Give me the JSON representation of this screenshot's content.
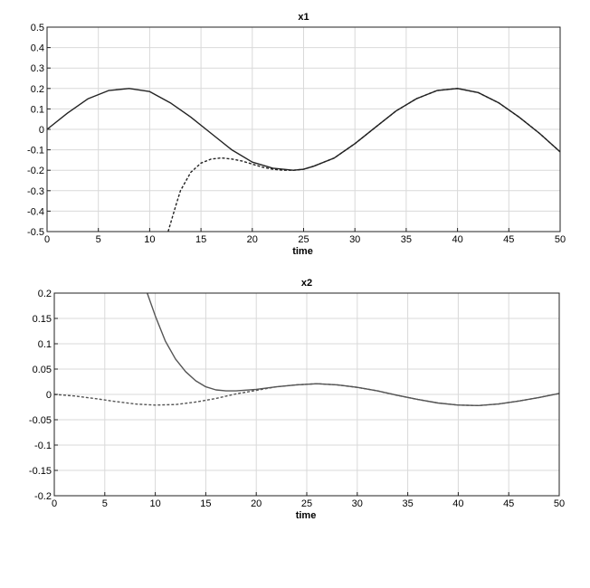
{
  "chart_data": [
    {
      "type": "line",
      "title": "x1",
      "xlabel": "time",
      "ylabel": "",
      "xlim": [
        0,
        50
      ],
      "ylim": [
        -0.5,
        0.5
      ],
      "grid": true,
      "xticks": [
        "0",
        "5",
        "10",
        "15",
        "20",
        "25",
        "30",
        "35",
        "40",
        "45",
        "50"
      ],
      "yticks": [
        "0.5",
        "0.4",
        "0.3",
        "0.2",
        "0.1",
        "0",
        "-0.1",
        "-0.2",
        "-0.3",
        "-0.4",
        "-0.5"
      ],
      "series": [
        {
          "style": "solid",
          "color": "#222222",
          "x": [
            0,
            2,
            4,
            6,
            8,
            10,
            12,
            14,
            16,
            18,
            20,
            22,
            24,
            25,
            26,
            28,
            30,
            32,
            34,
            36,
            38,
            40,
            42,
            44,
            46,
            48,
            50
          ],
          "y": [
            0,
            0.08,
            0.15,
            0.19,
            0.2,
            0.185,
            0.13,
            0.06,
            -0.02,
            -0.1,
            -0.16,
            -0.19,
            -0.2,
            -0.195,
            -0.18,
            -0.14,
            -0.07,
            0.01,
            0.09,
            0.15,
            0.19,
            0.2,
            0.18,
            0.13,
            0.06,
            -0.02,
            -0.11
          ]
        },
        {
          "style": "dashed",
          "color": "#222222",
          "x": [
            11.8,
            12.5,
            13,
            14,
            15,
            16,
            17,
            18,
            19,
            20,
            21,
            22,
            23,
            24,
            25,
            26,
            28,
            30,
            32,
            34,
            36,
            38,
            40,
            42,
            44,
            46,
            48,
            50
          ],
          "y": [
            -0.5,
            -0.38,
            -0.3,
            -0.21,
            -0.165,
            -0.145,
            -0.14,
            -0.145,
            -0.155,
            -0.17,
            -0.185,
            -0.195,
            -0.2,
            -0.2,
            -0.195,
            -0.18,
            -0.14,
            -0.07,
            0.01,
            0.09,
            0.15,
            0.19,
            0.2,
            0.18,
            0.13,
            0.06,
            -0.02,
            -0.11
          ]
        }
      ]
    },
    {
      "type": "line",
      "title": "x2",
      "xlabel": "time",
      "ylabel": "",
      "xlim": [
        0,
        50
      ],
      "ylim": [
        -0.2,
        0.2
      ],
      "grid": true,
      "xticks": [
        "0",
        "5",
        "10",
        "15",
        "20",
        "25",
        "30",
        "35",
        "40",
        "45",
        "50"
      ],
      "yticks": [
        "0.2",
        "0.15",
        "0.1",
        "0.05",
        "0",
        "-0.05",
        "-0.1",
        "-0.15",
        "-0.2"
      ],
      "series": [
        {
          "style": "solid",
          "color": "#555555",
          "x": [
            9.2,
            10,
            11,
            12,
            13,
            14,
            15,
            16,
            17,
            18,
            20,
            22,
            24,
            26,
            28,
            30,
            32,
            34,
            36,
            38,
            40,
            42,
            44,
            46,
            48,
            50
          ],
          "y": [
            0.2,
            0.155,
            0.105,
            0.07,
            0.045,
            0.027,
            0.015,
            0.009,
            0.007,
            0.007,
            0.01,
            0.015,
            0.019,
            0.021,
            0.019,
            0.014,
            0.007,
            -0.002,
            -0.01,
            -0.017,
            -0.021,
            -0.022,
            -0.019,
            -0.013,
            -0.006,
            0.002
          ]
        },
        {
          "style": "dashed",
          "color": "#555555",
          "x": [
            0,
            2,
            4,
            6,
            8,
            10,
            12,
            14,
            16,
            18,
            20,
            22,
            24,
            26,
            28,
            30,
            32,
            34,
            36,
            38,
            40,
            42,
            44,
            46,
            48,
            50
          ],
          "y": [
            0,
            -0.003,
            -0.008,
            -0.014,
            -0.019,
            -0.021,
            -0.02,
            -0.015,
            -0.008,
            0.001,
            0.008,
            0.015,
            0.019,
            0.021,
            0.019,
            0.014,
            0.007,
            -0.002,
            -0.01,
            -0.017,
            -0.021,
            -0.022,
            -0.019,
            -0.013,
            -0.006,
            0.002
          ]
        }
      ]
    }
  ]
}
